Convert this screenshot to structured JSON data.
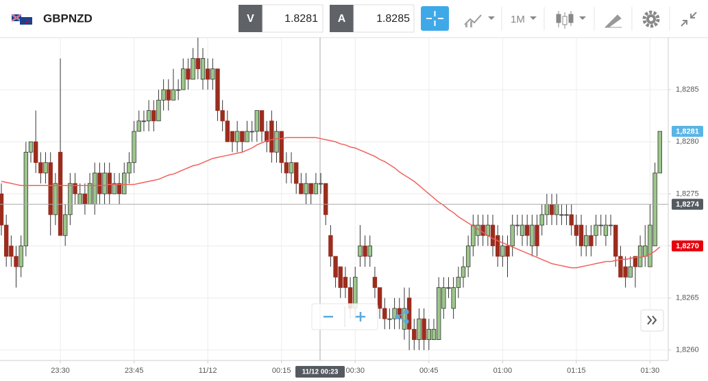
{
  "toolbar": {
    "symbol": "GBPNZD",
    "bid_label": "V",
    "bid": 1.8281,
    "ask_label": "A",
    "ask": 1.8285,
    "timeframe": "1M"
  },
  "chart_data": {
    "type": "candlestick",
    "categories": [
      null,
      null,
      null,
      null,
      null,
      null,
      null,
      null,
      null,
      null,
      null,
      null,
      "23:30",
      null,
      null,
      null,
      null,
      null,
      null,
      null,
      null,
      null,
      null,
      null,
      null,
      null,
      null,
      "23:45",
      null,
      null,
      null,
      null,
      null,
      null,
      null,
      null,
      null,
      null,
      null,
      null,
      null,
      null,
      "11/12",
      null,
      null,
      null,
      null,
      null,
      null,
      null,
      null,
      null,
      null,
      null,
      null,
      null,
      null,
      "00:15",
      null,
      null,
      null,
      null,
      null,
      null,
      null,
      null,
      null,
      null,
      null,
      null,
      null,
      null,
      "00:30",
      null,
      null,
      null,
      null,
      null,
      null,
      null,
      null,
      null,
      null,
      null,
      null,
      null,
      null,
      "00:45",
      null,
      null,
      null,
      null,
      null,
      null,
      null,
      null,
      null,
      null,
      null,
      null,
      null,
      null,
      "01:00",
      null,
      null,
      null,
      null,
      null,
      null,
      null,
      null,
      null,
      null,
      null,
      null,
      null,
      null,
      "01:15",
      null,
      null,
      null,
      null,
      null,
      null,
      null,
      null,
      null,
      null,
      null,
      null,
      null,
      null,
      "01:30",
      null,
      null
    ],
    "candles": {
      "open": [
        1.8275,
        1.8272,
        1.827,
        1.8269,
        1.8268,
        1.827,
        1.8279,
        1.828,
        1.8278,
        1.8277,
        1.8278,
        1.8273,
        1.8279,
        1.8271,
        1.8273,
        1.8276,
        1.8274,
        1.8275,
        1.8274,
        1.8274,
        1.8277,
        1.8275,
        1.8277,
        1.8275,
        1.8276,
        1.8275,
        1.8277,
        1.8278,
        1.8281,
        1.8282,
        1.8282,
        1.8283,
        1.8282,
        1.8284,
        1.8285,
        1.8284,
        1.8285,
        1.8285,
        1.8287,
        1.8286,
        1.8288,
        1.8286,
        1.8287,
        1.8286,
        1.8287,
        1.8283,
        1.8282,
        1.8281,
        1.828,
        1.8281,
        1.828,
        1.8281,
        1.8281,
        1.8283,
        1.8281,
        1.8282,
        1.8279,
        1.8281,
        1.8278,
        1.8277,
        1.8278,
        1.8276,
        1.8275,
        1.8276,
        1.8275,
        1.8276,
        1.8276,
        1.8271,
        1.8269,
        1.8268,
        1.8267,
        1.8266,
        1.8264,
        1.8269,
        1.827,
        1.8269,
        1.8267,
        1.8266,
        1.8264,
        1.8263,
        1.8263,
        1.8264,
        1.8262,
        1.8265,
        1.8262,
        1.8261,
        1.8263,
        1.8261,
        1.8261,
        1.8261,
        1.8264,
        1.8266,
        1.8264,
        1.8266,
        1.8267,
        1.8268,
        1.827,
        1.8271,
        1.8272,
        1.8271,
        1.8272,
        1.8271,
        1.8269,
        1.827,
        1.827,
        1.8272,
        1.8271,
        1.8272,
        1.827,
        1.8272,
        1.8272,
        1.8273,
        1.8274,
        1.8273,
        1.8273,
        1.8273,
        1.8273,
        1.8272,
        1.8272,
        1.827,
        1.8271,
        1.8271,
        1.8272,
        1.8271,
        1.8272,
        1.8272,
        1.8269,
        1.8268,
        1.8267,
        1.8269,
        1.8268,
        1.8269,
        1.8268,
        1.827,
        1.8277
      ],
      "high": [
        1.8276,
        1.8273,
        1.8271,
        1.827,
        1.8271,
        1.828,
        1.828,
        1.8283,
        1.8279,
        1.8279,
        1.8279,
        1.8277,
        1.8288,
        1.8274,
        1.8277,
        1.8277,
        1.8276,
        1.8276,
        1.8277,
        1.8278,
        1.8278,
        1.8278,
        1.8278,
        1.8277,
        1.8277,
        1.8278,
        1.8279,
        1.8282,
        1.8283,
        1.8283,
        1.8284,
        1.8284,
        1.8285,
        1.8286,
        1.8286,
        1.8287,
        1.8286,
        1.8288,
        1.8288,
        1.8289,
        1.829,
        1.8289,
        1.8288,
        1.8288,
        1.8287,
        1.8284,
        1.8283,
        1.8281,
        1.8282,
        1.8281,
        1.8282,
        1.8282,
        1.8283,
        1.8283,
        1.8282,
        1.8283,
        1.8282,
        1.8281,
        1.8279,
        1.8279,
        1.8278,
        1.8277,
        1.8277,
        1.8276,
        1.8277,
        1.8277,
        1.8276,
        1.8272,
        1.8269,
        1.8268,
        1.8268,
        1.8267,
        1.8268,
        1.8272,
        1.8271,
        1.8271,
        1.8268,
        1.8266,
        1.8265,
        1.8264,
        1.8265,
        1.8265,
        1.8266,
        1.8266,
        1.8263,
        1.8264,
        1.8264,
        1.8263,
        1.8263,
        1.8267,
        1.8267,
        1.8267,
        1.8267,
        1.8268,
        1.8269,
        1.8271,
        1.8273,
        1.8273,
        1.8273,
        1.8273,
        1.8273,
        1.8272,
        1.8271,
        1.8271,
        1.8273,
        1.8273,
        1.8273,
        1.8273,
        1.8273,
        1.8273,
        1.8274,
        1.8275,
        1.8275,
        1.8275,
        1.8274,
        1.8274,
        1.8274,
        1.8273,
        1.8273,
        1.8272,
        1.8272,
        1.8273,
        1.8273,
        1.8273,
        1.8273,
        1.8272,
        1.827,
        1.8269,
        1.8269,
        1.8269,
        1.8271,
        1.8272,
        1.8274,
        1.8278,
        1.8281
      ],
      "low": [
        1.8271,
        1.8268,
        1.8268,
        1.8266,
        1.8267,
        1.8269,
        1.8278,
        1.8277,
        1.8276,
        1.8276,
        1.8271,
        1.8272,
        1.8271,
        1.827,
        1.8272,
        1.8274,
        1.8274,
        1.8273,
        1.8274,
        1.8273,
        1.8274,
        1.8274,
        1.8274,
        1.8275,
        1.8274,
        1.8275,
        1.8276,
        1.8277,
        1.8281,
        1.8281,
        1.8281,
        1.8281,
        1.8282,
        1.8283,
        1.8283,
        1.8284,
        1.8284,
        1.8285,
        1.8285,
        1.8286,
        1.8286,
        1.8285,
        1.8285,
        1.8285,
        1.8282,
        1.8281,
        1.828,
        1.8279,
        1.8279,
        1.8279,
        1.828,
        1.828,
        1.828,
        1.828,
        1.8279,
        1.8278,
        1.8278,
        1.8277,
        1.8276,
        1.8276,
        1.8275,
        1.8275,
        1.8274,
        1.8274,
        1.8275,
        1.8275,
        1.8272,
        1.8268,
        1.8266,
        1.8265,
        1.8265,
        1.8263,
        1.8263,
        1.8268,
        1.8268,
        1.8268,
        1.8265,
        1.8263,
        1.8262,
        1.8262,
        1.8262,
        1.8262,
        1.8261,
        1.826,
        1.826,
        1.826,
        1.826,
        1.826,
        1.8261,
        1.8261,
        1.8263,
        1.8265,
        1.8263,
        1.8265,
        1.8266,
        1.8267,
        1.8269,
        1.827,
        1.827,
        1.827,
        1.8269,
        1.8268,
        1.8268,
        1.8267,
        1.8269,
        1.8271,
        1.827,
        1.827,
        1.8269,
        1.8269,
        1.8271,
        1.8272,
        1.8272,
        1.8272,
        1.8272,
        1.8272,
        1.8271,
        1.827,
        1.8269,
        1.8269,
        1.8269,
        1.827,
        1.8271,
        1.827,
        1.8271,
        1.8268,
        1.8267,
        1.8266,
        1.8267,
        1.8266,
        1.8268,
        1.8268,
        1.8268,
        1.827,
        1.8277
      ],
      "close": [
        1.8272,
        1.8269,
        1.8269,
        1.8268,
        1.827,
        1.8279,
        1.828,
        1.8278,
        1.8277,
        1.8278,
        1.8273,
        1.8276,
        1.8271,
        1.8273,
        1.8276,
        1.8275,
        1.8275,
        1.8274,
        1.8276,
        1.8277,
        1.8275,
        1.8277,
        1.8275,
        1.8276,
        1.8275,
        1.8277,
        1.8278,
        1.8281,
        1.8282,
        1.8282,
        1.8283,
        1.8282,
        1.8284,
        1.8285,
        1.8284,
        1.8285,
        1.8285,
        1.8287,
        1.8286,
        1.8288,
        1.8287,
        1.8288,
        1.8286,
        1.8287,
        1.8283,
        1.8282,
        1.828,
        1.828,
        1.8281,
        1.828,
        1.8281,
        1.8281,
        1.8283,
        1.8281,
        1.828,
        1.8279,
        1.8281,
        1.8278,
        1.8277,
        1.8278,
        1.8276,
        1.8275,
        1.8276,
        1.8275,
        1.8276,
        1.8276,
        1.8273,
        1.8269,
        1.8267,
        1.8266,
        1.8266,
        1.8264,
        1.8267,
        1.827,
        1.8269,
        1.827,
        1.8266,
        1.8264,
        1.8263,
        1.8263,
        1.8264,
        1.8263,
        1.8264,
        1.8262,
        1.8261,
        1.8263,
        1.8261,
        1.8262,
        1.8262,
        1.8266,
        1.8266,
        1.8266,
        1.8266,
        1.8267,
        1.8268,
        1.827,
        1.8272,
        1.8272,
        1.8271,
        1.8272,
        1.827,
        1.8269,
        1.827,
        1.8269,
        1.8272,
        1.8272,
        1.8272,
        1.8271,
        1.8272,
        1.827,
        1.8273,
        1.8274,
        1.8273,
        1.8274,
        1.8273,
        1.8273,
        1.8272,
        1.8271,
        1.827,
        1.8271,
        1.827,
        1.8272,
        1.8272,
        1.8272,
        1.8272,
        1.8269,
        1.8267,
        1.8267,
        1.8268,
        1.8268,
        1.827,
        1.827,
        1.8272,
        1.8277,
        1.8281
      ],
      "up_color": "#9cc68b",
      "down_color": "#9b2d1e"
    },
    "moving_average": {
      "color": "#f0605a",
      "values": [
        1.82762,
        1.82761,
        1.8276,
        1.82759,
        1.82758,
        1.82758,
        1.82758,
        1.82758,
        1.82758,
        1.82758,
        1.82758,
        1.82758,
        1.82758,
        1.82758,
        1.82758,
        1.82758,
        1.82758,
        1.82758,
        1.82758,
        1.82758,
        1.82758,
        1.82758,
        1.82759,
        1.82759,
        1.82759,
        1.82759,
        1.82759,
        1.82759,
        1.8276,
        1.82761,
        1.82762,
        1.82763,
        1.82764,
        1.82766,
        1.82768,
        1.82769,
        1.82771,
        1.82773,
        1.82775,
        1.82777,
        1.82778,
        1.8278,
        1.82782,
        1.82784,
        1.82785,
        1.82786,
        1.82787,
        1.82788,
        1.82789,
        1.8279,
        1.82792,
        1.82794,
        1.82797,
        1.82799,
        1.82801,
        1.82802,
        1.82803,
        1.82803,
        1.82804,
        1.82804,
        1.82804,
        1.82804,
        1.82804,
        1.82804,
        1.82804,
        1.82803,
        1.82802,
        1.82801,
        1.828,
        1.82798,
        1.82797,
        1.82795,
        1.82794,
        1.82792,
        1.8279,
        1.82788,
        1.82786,
        1.82783,
        1.82781,
        1.82778,
        1.82775,
        1.82771,
        1.82768,
        1.82765,
        1.82762,
        1.82758,
        1.82754,
        1.8275,
        1.82746,
        1.82742,
        1.82739,
        1.82735,
        1.82732,
        1.82728,
        1.82725,
        1.82722,
        1.82719,
        1.82716,
        1.82713,
        1.8271,
        1.82707,
        1.82705,
        1.82703,
        1.82701,
        1.82699,
        1.82697,
        1.82695,
        1.82693,
        1.82691,
        1.82689,
        1.82687,
        1.82685,
        1.82683,
        1.82682,
        1.82681,
        1.8268,
        1.82679,
        1.82679,
        1.8268,
        1.82681,
        1.82682,
        1.82683,
        1.82684,
        1.82685,
        1.82685,
        1.82686,
        1.82687,
        1.82687,
        1.82688,
        1.82689,
        1.82689,
        1.8269,
        1.82692,
        1.82695,
        1.82699
      ]
    },
    "ylim": [
      1.8259,
      1.829
    ],
    "yticks": [
      {
        "value": 1.826,
        "label": "1,8260"
      },
      {
        "value": 1.8265,
        "label": "1,8265"
      },
      {
        "value": 1.827,
        "label": "1,8270"
      },
      {
        "value": 1.8275,
        "label": "1,8275"
      },
      {
        "value": 1.828,
        "label": "1,8280"
      },
      {
        "value": 1.8285,
        "label": "1,8285"
      }
    ],
    "grid": true,
    "price_labels": [
      {
        "value": 1.8281,
        "label": "1,8281",
        "color": "#5ab4e5"
      },
      {
        "value": 1.8274,
        "label": "1,8274",
        "color": "#555a60"
      },
      {
        "value": 1.827,
        "label": "1,8270",
        "color": "#e8000b"
      }
    ],
    "crosshair_time": "11/12 00:23"
  }
}
